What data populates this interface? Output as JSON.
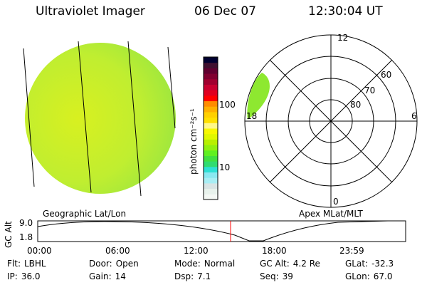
{
  "header": {
    "title": "Ultraviolet Imager",
    "date": "06 Dec 07",
    "time": "12:30:04 UT"
  },
  "colorbar": {
    "label": "photon cm⁻²s⁻¹",
    "ticks": [
      "100",
      "10"
    ],
    "colors": [
      "#f4f8f4",
      "#e8f2ec",
      "#d8e4e4",
      "#a8eef4",
      "#8ae8f0",
      "#2ee0d4",
      "#30dc70",
      "#40e040",
      "#60f020",
      "#90f010",
      "#b8f000",
      "#e0f800",
      "#f8f800",
      "#fff888",
      "#ffe000",
      "#ffd000",
      "#ffb000",
      "#ff8c00",
      "#ff0000",
      "#e00020",
      "#c80030",
      "#a00030",
      "#800030",
      "#600030",
      "#401030",
      "#000030"
    ]
  },
  "polar": {
    "mlt_labels": {
      "top": "12",
      "bottom": "0",
      "left": "18",
      "right": "6"
    },
    "lat_labels": [
      "80",
      "70",
      "60"
    ]
  },
  "left_label": "Geographic Lat/Lon",
  "right_label": "Apex MLat/MLT",
  "alt_plot": {
    "ylabel": "GC Alt",
    "yticks": [
      "9.0",
      "1.8"
    ],
    "xticks": [
      "00:00",
      "06:00",
      "12:00",
      "18:00",
      "23:59"
    ],
    "current_time_color": "#ff0000"
  },
  "info": [
    {
      "label": "Flt:",
      "value": "LBHL"
    },
    {
      "label": "Door:",
      "value": "Open"
    },
    {
      "label": "Mode:",
      "value": "Normal"
    },
    {
      "label": "GC Alt:",
      "value": "4.2 Re"
    },
    {
      "label": "GLat:",
      "value": "-32.3"
    },
    {
      "label": "IP:",
      "value": "36.0"
    },
    {
      "label": "Gain:",
      "value": "14"
    },
    {
      "label": "Dsp:",
      "value": "7.1"
    },
    {
      "label": "Seq:",
      "value": "39"
    },
    {
      "label": "GLon:",
      "value": "67.0"
    }
  ]
}
